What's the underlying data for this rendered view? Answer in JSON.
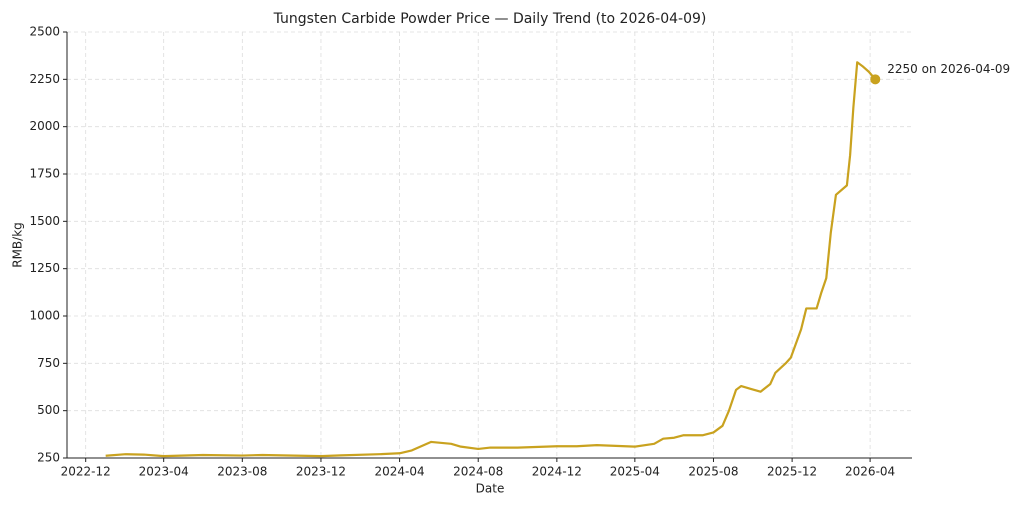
{
  "chart_data": {
    "type": "line",
    "title": "Tungsten Carbide Powder Price — Daily Trend (to 2026-04-09)",
    "x_label": "Date",
    "y_label": "RMB/kg",
    "x": [
      "2023-01-01",
      "2023-02-01",
      "2023-03-01",
      "2023-04-01",
      "2023-06-01",
      "2023-08-01",
      "2023-09-01",
      "2023-11-01",
      "2023-12-01",
      "2024-01-01",
      "2024-03-01",
      "2024-04-01",
      "2024-04-20",
      "2024-05-20",
      "2024-06-20",
      "2024-07-05",
      "2024-08-01",
      "2024-08-20",
      "2024-10-01",
      "2024-12-01",
      "2025-01-01",
      "2025-02-01",
      "2025-04-01",
      "2025-05-01",
      "2025-05-15",
      "2025-06-01",
      "2025-06-15",
      "2025-07-15",
      "2025-08-01",
      "2025-08-15",
      "2025-08-25",
      "2025-09-05",
      "2025-09-13",
      "2025-09-28",
      "2025-10-13",
      "2025-10-28",
      "2025-11-05",
      "2025-11-21",
      "2025-11-29",
      "2025-12-15",
      "2025-12-23",
      "2026-01-08",
      "2026-01-15",
      "2026-01-23",
      "2026-01-30",
      "2026-02-07",
      "2026-02-24",
      "2026-03-01",
      "2026-03-06",
      "2026-03-12",
      "2026-03-20",
      "2026-03-30",
      "2026-04-09"
    ],
    "series": [
      {
        "name": "RMB/kg",
        "color": "#c9a21f",
        "values": [
          262,
          270,
          268,
          260,
          266,
          263,
          266,
          262,
          260,
          264,
          270,
          275,
          290,
          335,
          325,
          310,
          298,
          305,
          305,
          312,
          312,
          318,
          310,
          325,
          352,
          357,
          370,
          370,
          385,
          420,
          500,
          610,
          630,
          615,
          600,
          640,
          700,
          750,
          780,
          930,
          1040,
          1040,
          1120,
          1200,
          1440,
          1640,
          1690,
          1850,
          2100,
          2340,
          2320,
          2290,
          2250
        ]
      }
    ],
    "xlim": [
      "2022-11-02",
      "2026-06-05"
    ],
    "xticks": [
      {
        "value": "2022-12-01",
        "label": "2022-12"
      },
      {
        "value": "2023-04-01",
        "label": "2023-04"
      },
      {
        "value": "2023-08-01",
        "label": "2023-08"
      },
      {
        "value": "2023-12-01",
        "label": "2023-12"
      },
      {
        "value": "2024-04-01",
        "label": "2024-04"
      },
      {
        "value": "2024-08-01",
        "label": "2024-08"
      },
      {
        "value": "2024-12-01",
        "label": "2024-12"
      },
      {
        "value": "2025-04-01",
        "label": "2025-04"
      },
      {
        "value": "2025-08-01",
        "label": "2025-08"
      },
      {
        "value": "2025-12-01",
        "label": "2025-12"
      },
      {
        "value": "2026-04-01",
        "label": "2026-04"
      }
    ],
    "ylim": [
      250,
      2500
    ],
    "yticks": [
      250,
      500,
      750,
      1000,
      1250,
      1500,
      1750,
      2000,
      2250,
      2500
    ],
    "grid": true,
    "annotation": "2250 on 2026-04-09"
  }
}
